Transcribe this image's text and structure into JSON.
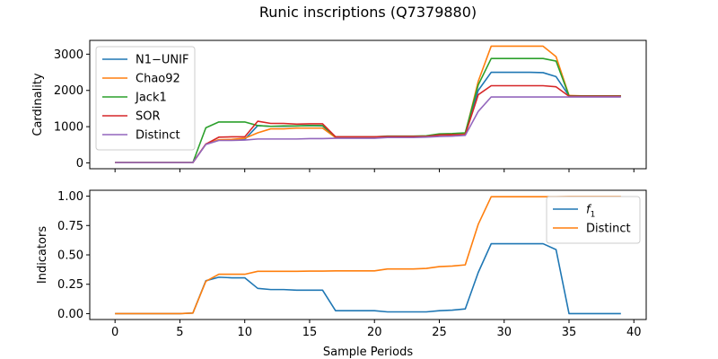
{
  "figure_title": "Runic inscriptions (Q7379880)",
  "chart_data": [
    {
      "type": "line",
      "title": "",
      "xlabel": "",
      "ylabel": "Cardinality",
      "xlim": [
        -1.95,
        40.95
      ],
      "ylim": [
        -160,
        3380
      ],
      "xticks": [
        0,
        5,
        10,
        15,
        20,
        25,
        30,
        35,
        40
      ],
      "xticklabels_visible": false,
      "yticks": [
        0,
        1000,
        2000,
        3000
      ],
      "yticklabels": [
        "0",
        "1000",
        "2000",
        "3000"
      ],
      "grid": false,
      "legend": "top-left",
      "x": [
        0,
        1,
        2,
        3,
        4,
        5,
        6,
        7,
        8,
        9,
        10,
        11,
        12,
        13,
        14,
        15,
        16,
        17,
        18,
        19,
        20,
        21,
        22,
        23,
        24,
        25,
        26,
        27,
        28,
        29,
        30,
        31,
        32,
        33,
        34,
        35,
        36,
        37,
        38,
        39
      ],
      "series": [
        {
          "name": "N1−UNIF",
          "color": "#1f77b4",
          "values": [
            10,
            10,
            10,
            10,
            10,
            10,
            10,
            520,
            630,
            630,
            650,
            1030,
            1010,
            1010,
            1020,
            1030,
            1020,
            700,
            700,
            700,
            700,
            720,
            720,
            720,
            730,
            780,
            790,
            810,
            2000,
            2500,
            2500,
            2500,
            2500,
            2490,
            2380,
            1850,
            1850,
            1850,
            1850,
            1850
          ]
        },
        {
          "name": "Chao92",
          "color": "#ff7f0e",
          "values": [
            10,
            10,
            10,
            10,
            10,
            10,
            10,
            520,
            640,
            650,
            680,
            830,
            940,
            940,
            960,
            960,
            960,
            700,
            700,
            700,
            700,
            720,
            720,
            720,
            730,
            770,
            780,
            800,
            2250,
            3220,
            3220,
            3220,
            3220,
            3220,
            2930,
            1860,
            1850,
            1850,
            1850,
            1850
          ]
        },
        {
          "name": "Jack1",
          "color": "#2ca02c",
          "values": [
            10,
            10,
            10,
            10,
            10,
            10,
            10,
            970,
            1130,
            1130,
            1130,
            1030,
            1010,
            1020,
            1020,
            1030,
            1030,
            720,
            720,
            720,
            720,
            740,
            740,
            740,
            750,
            800,
            810,
            830,
            2150,
            2880,
            2880,
            2880,
            2880,
            2880,
            2810,
            1850,
            1850,
            1850,
            1850,
            1850
          ]
        },
        {
          "name": "SOR",
          "color": "#d62728",
          "values": [
            10,
            10,
            10,
            10,
            10,
            10,
            10,
            520,
            710,
            720,
            720,
            1150,
            1090,
            1090,
            1070,
            1080,
            1080,
            720,
            720,
            720,
            720,
            730,
            730,
            730,
            730,
            770,
            780,
            780,
            1880,
            2130,
            2130,
            2130,
            2130,
            2130,
            2100,
            1840,
            1840,
            1840,
            1840,
            1840
          ]
        },
        {
          "name": "Distinct",
          "color": "#9467bd",
          "values": [
            10,
            10,
            10,
            10,
            10,
            10,
            10,
            510,
            620,
            620,
            630,
            660,
            660,
            660,
            660,
            670,
            670,
            680,
            680,
            680,
            680,
            700,
            700,
            700,
            710,
            730,
            740,
            760,
            1420,
            1820,
            1820,
            1820,
            1820,
            1820,
            1820,
            1820,
            1820,
            1820,
            1820,
            1820
          ]
        }
      ]
    },
    {
      "type": "line",
      "title": "",
      "xlabel": "Sample Periods",
      "ylabel": "Indicators",
      "xlim": [
        -1.95,
        40.95
      ],
      "ylim": [
        -0.05,
        1.05
      ],
      "xticks": [
        0,
        5,
        10,
        15,
        20,
        25,
        30,
        35,
        40
      ],
      "xticklabels": [
        "0",
        "5",
        "10",
        "15",
        "20",
        "25",
        "30",
        "35",
        "40"
      ],
      "yticks": [
        0,
        0.25,
        0.5,
        0.75,
        1.0
      ],
      "yticklabels": [
        "0.00",
        "0.25",
        "0.50",
        "0.75",
        "1.00"
      ],
      "grid": false,
      "legend": "top-right",
      "x": [
        0,
        1,
        2,
        3,
        4,
        5,
        6,
        7,
        8,
        9,
        10,
        11,
        12,
        13,
        14,
        15,
        16,
        17,
        18,
        19,
        20,
        21,
        22,
        23,
        24,
        25,
        26,
        27,
        28,
        29,
        30,
        31,
        32,
        33,
        34,
        35,
        36,
        37,
        38,
        39
      ],
      "series": [
        {
          "name": "f1",
          "label_main": "f",
          "label_sub": "1",
          "color": "#1f77b4",
          "values": [
            0,
            0,
            0,
            0,
            0,
            0,
            0.005,
            0.28,
            0.31,
            0.305,
            0.305,
            0.215,
            0.205,
            0.205,
            0.2,
            0.2,
            0.2,
            0.025,
            0.025,
            0.025,
            0.025,
            0.015,
            0.015,
            0.015,
            0.015,
            0.025,
            0.03,
            0.04,
            0.35,
            0.595,
            0.595,
            0.595,
            0.595,
            0.595,
            0.545,
            0,
            0,
            0,
            0,
            0
          ]
        },
        {
          "name": "Distinct",
          "label_main": "Distinct",
          "label_sub": "",
          "color": "#ff7f0e",
          "values": [
            0,
            0,
            0,
            0,
            0,
            0,
            0.005,
            0.275,
            0.335,
            0.335,
            0.335,
            0.36,
            0.36,
            0.36,
            0.36,
            0.362,
            0.362,
            0.364,
            0.364,
            0.364,
            0.364,
            0.38,
            0.38,
            0.38,
            0.385,
            0.4,
            0.405,
            0.415,
            0.76,
            0.995,
            0.995,
            0.995,
            0.995,
            0.995,
            0.995,
            0.997,
            0.997,
            0.997,
            0.997,
            0.997
          ]
        }
      ]
    }
  ]
}
